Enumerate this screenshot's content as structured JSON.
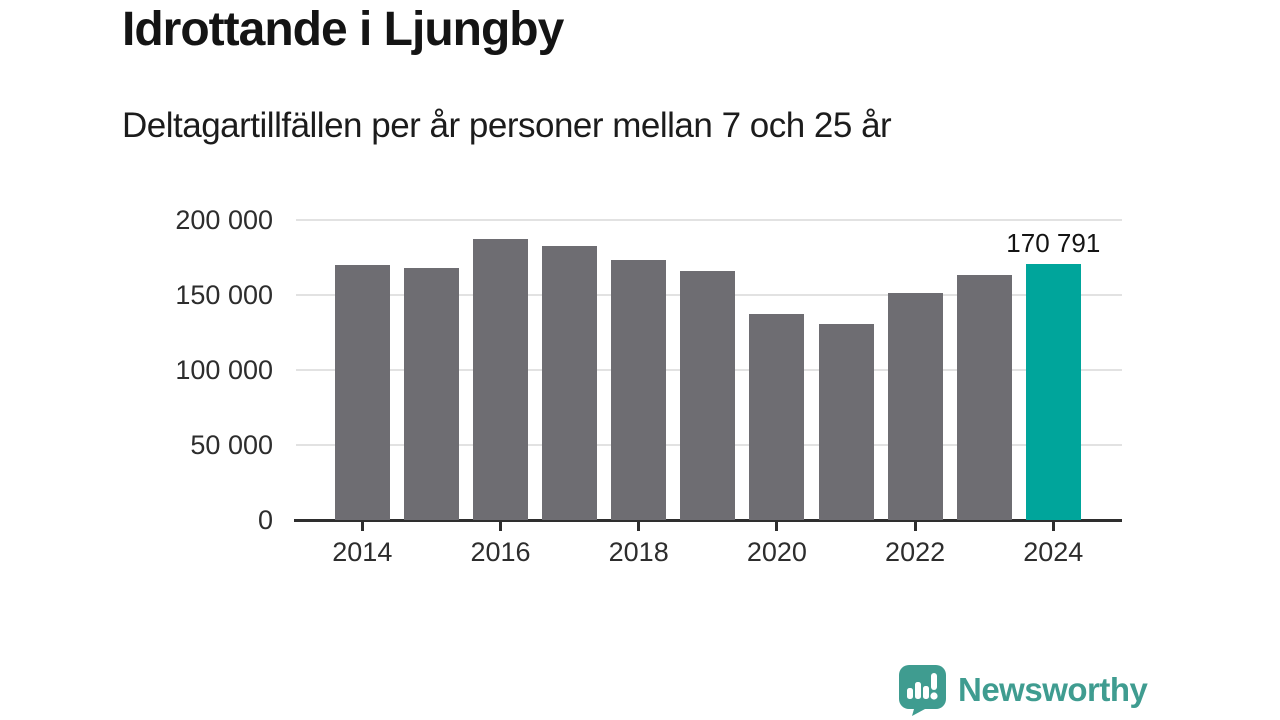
{
  "header": {
    "title": "Idrottande i Ljungby",
    "subtitle": "Deltagartillfällen per år personer mellan 7 och 25 år"
  },
  "chart_data": {
    "type": "bar",
    "title": "Idrottande i Ljungby",
    "subtitle": "Deltagartillfällen per år personer mellan 7 och 25 år",
    "categories": [
      "2014",
      "2015",
      "2016",
      "2017",
      "2018",
      "2019",
      "2020",
      "2021",
      "2022",
      "2023",
      "2024"
    ],
    "values": [
      170000,
      167800,
      187300,
      182900,
      173200,
      165700,
      137400,
      130800,
      151600,
      163600,
      170791
    ],
    "highlight": {
      "index": 10,
      "value": 170791,
      "label": "170 791"
    },
    "ylim": [
      0,
      200000
    ],
    "yticks": [
      {
        "value": 200000,
        "label": "200 000"
      },
      {
        "value": 150000,
        "label": "150 000"
      },
      {
        "value": 100000,
        "label": "100 000"
      },
      {
        "value": 50000,
        "label": "50 000"
      },
      {
        "value": 0,
        "label": "0"
      }
    ],
    "xticks": [
      {
        "index": 0,
        "label": "2014"
      },
      {
        "index": 2,
        "label": "2016"
      },
      {
        "index": 4,
        "label": "2018"
      },
      {
        "index": 6,
        "label": "2020"
      },
      {
        "index": 8,
        "label": "2022"
      },
      {
        "index": 10,
        "label": "2024"
      }
    ],
    "grid": true,
    "legend_position": "none",
    "colors": {
      "bar": "#6e6d72",
      "highlight": "#00a59b",
      "gridline": "#e2e2e2",
      "axis": "#2e2e2e",
      "tick_label": "#2d2d2d"
    }
  },
  "footer": {
    "brand_name": "Newsworthy",
    "brand_color": "#3f9c90",
    "logo_icon": "bar-chart-exclamation-bubble-icon"
  }
}
